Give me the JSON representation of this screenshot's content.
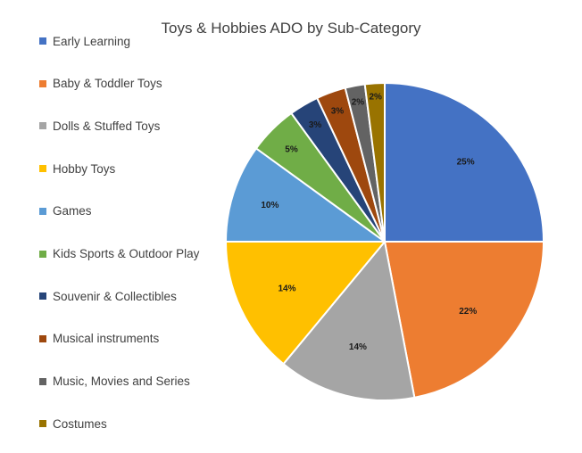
{
  "chart_data": {
    "type": "pie",
    "title": "Toys & Hobbies ADO by Sub-Category",
    "legend_position": "left",
    "slices": [
      {
        "name": "Early Learning",
        "value": 25,
        "label": "25%",
        "color": "#4472C4"
      },
      {
        "name": "Baby & Toddler Toys",
        "value": 22,
        "label": "22%",
        "color": "#ED7D31"
      },
      {
        "name": "Dolls & Stuffed Toys",
        "value": 14,
        "label": "14%",
        "color": "#A5A5A5"
      },
      {
        "name": "Hobby Toys",
        "value": 14,
        "label": "14%",
        "color": "#FFC000"
      },
      {
        "name": "Games",
        "value": 10,
        "label": "10%",
        "color": "#5B9BD5"
      },
      {
        "name": "Kids Sports & Outdoor Play",
        "value": 5,
        "label": "5%",
        "color": "#70AD47"
      },
      {
        "name": "Souvenir & Collectibles",
        "value": 3,
        "label": "3%",
        "color": "#264478"
      },
      {
        "name": "Musical instruments",
        "value": 3,
        "label": "3%",
        "color": "#9E480E"
      },
      {
        "name": "Music, Movies and Series",
        "value": 2,
        "label": "2%",
        "color": "#636363"
      },
      {
        "name": "Costumes",
        "value": 2,
        "label": "2%",
        "color": "#997300"
      }
    ]
  }
}
